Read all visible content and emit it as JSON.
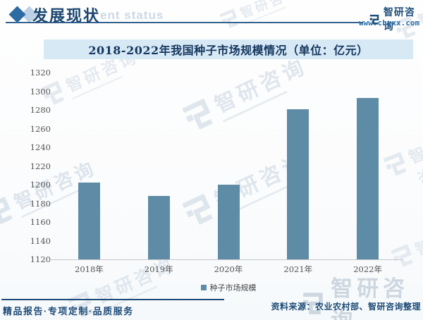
{
  "header": {
    "title": "发展现状",
    "ghost_text": "ent status",
    "brand_name": "智研咨询",
    "brand_url": "www.chyxx.com"
  },
  "chart_data": {
    "type": "bar",
    "title": "2018-2022年我国种子市场规模情况（单位：亿元）",
    "categories": [
      "2018年",
      "2019年",
      "2020年",
      "2021年",
      "2022年"
    ],
    "values": [
      1202,
      1188,
      1200,
      1281,
      1293
    ],
    "series_name": "种子市场规模",
    "unit": "亿元",
    "ylim": [
      1120,
      1320
    ],
    "ytick_step": 20,
    "grid": false,
    "legend_position": "bottom",
    "bar_color": "#5e8ca7"
  },
  "footer": {
    "left_text": "精品报告·专项定制·品质服务",
    "source_text": "资料来源：农业农村部、智研咨询整理"
  },
  "watermark": {
    "text": "智研咨询"
  },
  "colors": {
    "accent_navy": "#1c4b77",
    "bar": "#5e8ca7",
    "banner_bg": "#d7e9f5",
    "link_blue": "#2a6fa8",
    "watermark": "#ccd8e3"
  }
}
